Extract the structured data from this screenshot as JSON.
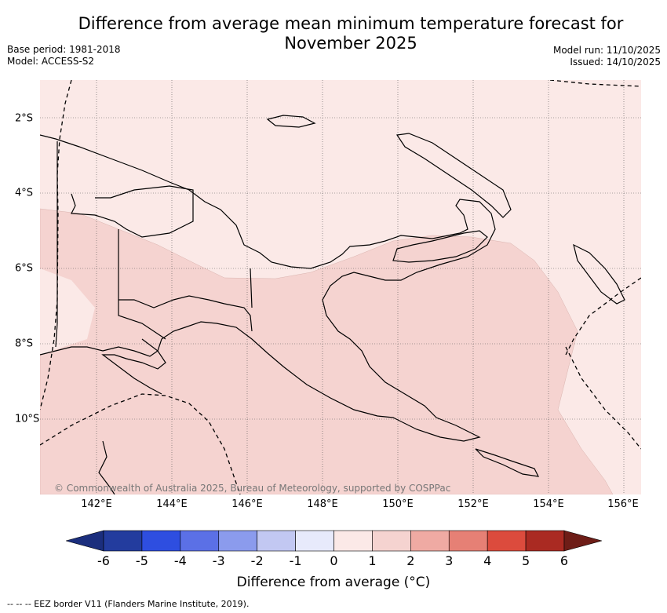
{
  "title_line1": "Difference from average mean minimum temperature forecast for",
  "title_line2": "November 2025",
  "base_period": "Base period: 1981-2018",
  "model": "Model: ACCESS-S2",
  "model_run": "Model run: 11/10/2025",
  "issued": "Issued: 14/10/2025",
  "lon_ticks": [
    "142°E",
    "144°E",
    "146°E",
    "148°E",
    "150°E",
    "152°E",
    "154°E",
    "156°E"
  ],
  "lat_ticks": [
    "2°S",
    "4°S",
    "6°S",
    "8°S",
    "10°S"
  ],
  "colorbar_labels": [
    "-6",
    "-5",
    "-4",
    "-3",
    "-2",
    "-1",
    "0",
    "1",
    "2",
    "3",
    "4",
    "5",
    "6"
  ],
  "colorbar_colors": [
    "#233c9e",
    "#2e4ee0",
    "#5b70e6",
    "#8b9bed",
    "#c2c8f2",
    "#e7eafb",
    "#fbe9e7",
    "#f5d3d0",
    "#efaaa3",
    "#e68075",
    "#dc4b3d",
    "#aa2a22"
  ],
  "colorbar_low_color": "#1b2e7d",
  "colorbar_high_color": "#6e1d17",
  "colorbar_title": "Difference from average (°C)",
  "credit": "© Commonwealth of Australia 2025, Bureau of Meteorology, supported by COSPPac",
  "footnote": "-- -- -- EEZ border V11 (Flanders Marine Institute, 2019)."
}
